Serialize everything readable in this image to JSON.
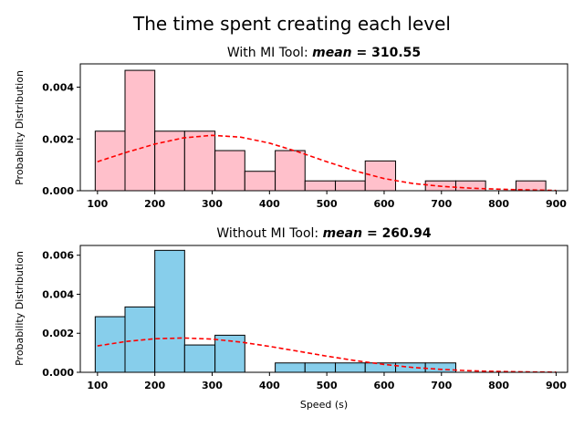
{
  "figure": {
    "title": "The time spent creating each level"
  },
  "chart_data": [
    {
      "type": "bar",
      "title_prefix": "With MI Tool: ",
      "title_math_var": "mean",
      "title_math_eq": " = ",
      "title_math_value": "310.55",
      "xlabel": "",
      "ylabel": "Probability Distribution",
      "xlim": [
        70,
        920
      ],
      "ylim": [
        0,
        0.0049
      ],
      "x_ticks": [
        100,
        200,
        300,
        400,
        500,
        600,
        700,
        800,
        900
      ],
      "y_ticks": [
        0.0,
        0.002,
        0.004
      ],
      "y_tick_labels": [
        "0.000",
        "0.002",
        "0.004"
      ],
      "bar_color": "#ffc0cb",
      "bins": [
        {
          "x0": 96,
          "x1": 148,
          "value": 0.0023
        },
        {
          "x0": 148,
          "x1": 200,
          "value": 0.00465
        },
        {
          "x0": 200,
          "x1": 252,
          "value": 0.0023
        },
        {
          "x0": 252,
          "x1": 305,
          "value": 0.0023
        },
        {
          "x0": 305,
          "x1": 357,
          "value": 0.00155
        },
        {
          "x0": 357,
          "x1": 410,
          "value": 0.00075
        },
        {
          "x0": 410,
          "x1": 462,
          "value": 0.00155
        },
        {
          "x0": 462,
          "x1": 515,
          "value": 0.00038
        },
        {
          "x0": 515,
          "x1": 567,
          "value": 0.00038
        },
        {
          "x0": 567,
          "x1": 620,
          "value": 0.00115
        },
        {
          "x0": 620,
          "x1": 672,
          "value": 0.0
        },
        {
          "x0": 672,
          "x1": 725,
          "value": 0.00038
        },
        {
          "x0": 725,
          "x1": 777,
          "value": 0.00038
        },
        {
          "x0": 777,
          "x1": 830,
          "value": 0.0
        },
        {
          "x0": 830,
          "x1": 882,
          "value": 0.00038
        }
      ],
      "density_curve": {
        "color": "#ff0000",
        "style": "dashed",
        "x": [
          100,
          150,
          200,
          250,
          300,
          350,
          400,
          450,
          500,
          550,
          600,
          650,
          700,
          750,
          800,
          850,
          900
        ],
        "y": [
          0.00112,
          0.00148,
          0.0018,
          0.00204,
          0.00214,
          0.00207,
          0.00184,
          0.0015,
          0.00112,
          0.00076,
          0.00047,
          0.00028,
          0.00017,
          0.0001,
          6e-05,
          3e-05,
          1e-05
        ]
      }
    },
    {
      "type": "bar",
      "title_prefix": "Without MI Tool: ",
      "title_math_var": "mean",
      "title_math_eq": " = ",
      "title_math_value": "260.94",
      "xlabel": "Speed (s)",
      "ylabel": "Probability Distribution",
      "xlim": [
        70,
        920
      ],
      "ylim": [
        0,
        0.0065
      ],
      "x_ticks": [
        100,
        200,
        300,
        400,
        500,
        600,
        700,
        800,
        900
      ],
      "y_ticks": [
        0.0,
        0.002,
        0.004,
        0.006
      ],
      "y_tick_labels": [
        "0.000",
        "0.002",
        "0.004",
        "0.006"
      ],
      "bar_color": "#87ceeb",
      "bins": [
        {
          "x0": 96,
          "x1": 148,
          "value": 0.00285
        },
        {
          "x0": 148,
          "x1": 200,
          "value": 0.00335
        },
        {
          "x0": 200,
          "x1": 252,
          "value": 0.00625
        },
        {
          "x0": 252,
          "x1": 305,
          "value": 0.0014
        },
        {
          "x0": 305,
          "x1": 357,
          "value": 0.0019
        },
        {
          "x0": 357,
          "x1": 410,
          "value": 0.0
        },
        {
          "x0": 410,
          "x1": 462,
          "value": 0.00048
        },
        {
          "x0": 462,
          "x1": 515,
          "value": 0.00048
        },
        {
          "x0": 515,
          "x1": 567,
          "value": 0.00048
        },
        {
          "x0": 567,
          "x1": 620,
          "value": 0.00048
        },
        {
          "x0": 620,
          "x1": 672,
          "value": 0.00048
        },
        {
          "x0": 672,
          "x1": 725,
          "value": 0.00048
        }
      ],
      "density_curve": {
        "color": "#ff0000",
        "style": "dashed",
        "x": [
          100,
          150,
          200,
          250,
          300,
          350,
          400,
          450,
          500,
          550,
          600,
          650,
          700,
          750,
          800,
          850,
          900
        ],
        "y": [
          0.00135,
          0.00158,
          0.00172,
          0.00176,
          0.0017,
          0.00155,
          0.00133,
          0.00108,
          0.00083,
          0.0006,
          0.0004,
          0.00025,
          0.00015,
          8e-05,
          4e-05,
          2e-05,
          1e-05
        ]
      }
    }
  ]
}
